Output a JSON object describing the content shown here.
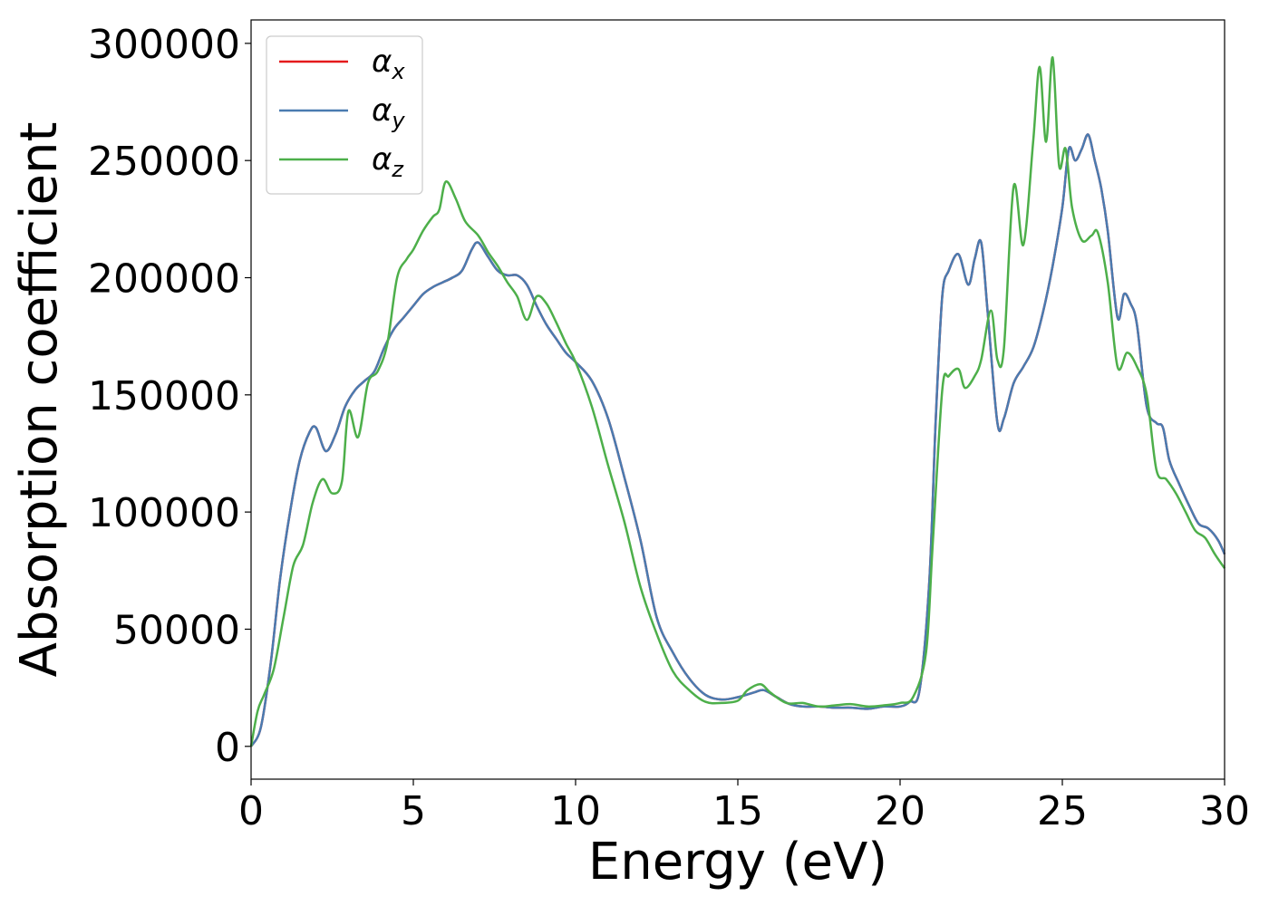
{
  "chart_data": {
    "type": "line",
    "title": "",
    "xlabel": "Energy (eV)",
    "ylabel": "Absorption coefficient",
    "xlim": [
      0,
      30
    ],
    "ylim": [
      -14000,
      310000
    ],
    "xticks": [
      0,
      5,
      10,
      15,
      20,
      25,
      30
    ],
    "xtick_labels": [
      "0",
      "5",
      "10",
      "15",
      "20",
      "25",
      "30"
    ],
    "yticks": [
      0,
      50000,
      100000,
      150000,
      200000,
      250000,
      300000
    ],
    "ytick_labels": [
      "0",
      "50000",
      "100000",
      "150000",
      "200000",
      "250000",
      "300000"
    ],
    "grid": false,
    "legend_position": "top-left",
    "series": [
      {
        "name": "αx",
        "symbol": "α",
        "subscript": "x",
        "color": "#e41a1c",
        "x": [
          0,
          0.3,
          0.6,
          0.9,
          1.2,
          1.5,
          1.8,
          2.0,
          2.3,
          2.6,
          2.9,
          3.2,
          3.5,
          3.8,
          4.1,
          4.4,
          4.7,
          5.0,
          5.3,
          5.6,
          5.9,
          6.2,
          6.5,
          6.8,
          7.0,
          7.3,
          7.6,
          7.9,
          8.2,
          8.5,
          8.8,
          9.1,
          9.4,
          9.7,
          10.0,
          10.5,
          11.0,
          11.5,
          12.0,
          12.5,
          13.0,
          13.5,
          14.0,
          14.5,
          15.0,
          15.5,
          15.8,
          16.2,
          16.6,
          17.0,
          17.5,
          18.0,
          18.5,
          19.0,
          19.5,
          20.0,
          20.3,
          20.6,
          20.9,
          21.1,
          21.3,
          21.5,
          21.8,
          22.1,
          22.3,
          22.5,
          22.7,
          23.0,
          23.2,
          23.5,
          23.8,
          24.1,
          24.4,
          24.7,
          25.0,
          25.2,
          25.4,
          25.6,
          25.8,
          26.0,
          26.2,
          26.4,
          26.7,
          26.9,
          27.1,
          27.3,
          27.6,
          27.9,
          28.1,
          28.3,
          28.6,
          28.9,
          29.2,
          29.5,
          29.8,
          30.0
        ],
        "values": [
          0,
          8000,
          35000,
          72000,
          100000,
          122000,
          134000,
          136000,
          126000,
          133000,
          145000,
          152000,
          156000,
          160000,
          170000,
          178000,
          183000,
          188000,
          193000,
          196000,
          198000,
          200000,
          203000,
          212000,
          215000,
          209000,
          203000,
          201000,
          201000,
          197000,
          188000,
          180000,
          174000,
          168000,
          164000,
          156000,
          140000,
          115000,
          88000,
          55000,
          40000,
          29000,
          22000,
          20000,
          21000,
          23000,
          24000,
          21000,
          18000,
          17000,
          17000,
          16500,
          16500,
          16000,
          17000,
          17000,
          19000,
          24000,
          70000,
          140000,
          192000,
          203000,
          210000,
          197000,
          208000,
          215000,
          185000,
          138000,
          140000,
          155000,
          162000,
          170000,
          185000,
          205000,
          230000,
          255000,
          250000,
          255000,
          261000,
          250000,
          238000,
          220000,
          183000,
          193000,
          189000,
          180000,
          145000,
          138000,
          136000,
          122000,
          112000,
          103000,
          95000,
          93000,
          88000,
          82000
        ]
      },
      {
        "name": "αy",
        "symbol": "α",
        "subscript": "y",
        "color": "#4a7bb0",
        "x": [
          0,
          0.3,
          0.6,
          0.9,
          1.2,
          1.5,
          1.8,
          2.0,
          2.3,
          2.6,
          2.9,
          3.2,
          3.5,
          3.8,
          4.1,
          4.4,
          4.7,
          5.0,
          5.3,
          5.6,
          5.9,
          6.2,
          6.5,
          6.8,
          7.0,
          7.3,
          7.6,
          7.9,
          8.2,
          8.5,
          8.8,
          9.1,
          9.4,
          9.7,
          10.0,
          10.5,
          11.0,
          11.5,
          12.0,
          12.5,
          13.0,
          13.5,
          14.0,
          14.5,
          15.0,
          15.5,
          15.8,
          16.2,
          16.6,
          17.0,
          17.5,
          18.0,
          18.5,
          19.0,
          19.5,
          20.0,
          20.3,
          20.6,
          20.9,
          21.1,
          21.3,
          21.5,
          21.8,
          22.1,
          22.3,
          22.5,
          22.7,
          23.0,
          23.2,
          23.5,
          23.8,
          24.1,
          24.4,
          24.7,
          25.0,
          25.2,
          25.4,
          25.6,
          25.8,
          26.0,
          26.2,
          26.4,
          26.7,
          26.9,
          27.1,
          27.3,
          27.6,
          27.9,
          28.1,
          28.3,
          28.6,
          28.9,
          29.2,
          29.5,
          29.8,
          30.0
        ],
        "values": [
          0,
          8000,
          35000,
          72000,
          100000,
          122000,
          134000,
          136000,
          126000,
          133000,
          145000,
          152000,
          156000,
          160000,
          170000,
          178000,
          183000,
          188000,
          193000,
          196000,
          198000,
          200000,
          203000,
          212000,
          215000,
          209000,
          203000,
          201000,
          201000,
          197000,
          188000,
          180000,
          174000,
          168000,
          164000,
          156000,
          140000,
          115000,
          88000,
          55000,
          40000,
          29000,
          22000,
          20000,
          21000,
          23000,
          24000,
          21000,
          18000,
          17000,
          17000,
          16500,
          16500,
          16000,
          17000,
          17000,
          19000,
          24000,
          70000,
          140000,
          192000,
          203000,
          210000,
          197000,
          208000,
          215000,
          185000,
          138000,
          140000,
          155000,
          162000,
          170000,
          185000,
          205000,
          230000,
          255000,
          250000,
          255000,
          261000,
          250000,
          238000,
          220000,
          183000,
          193000,
          189000,
          180000,
          145000,
          138000,
          136000,
          122000,
          112000,
          103000,
          95000,
          93000,
          88000,
          82000
        ]
      },
      {
        "name": "αz",
        "symbol": "α",
        "subscript": "z",
        "color": "#4daf4a",
        "x": [
          0,
          0.2,
          0.4,
          0.7,
          1.0,
          1.3,
          1.6,
          1.9,
          2.2,
          2.5,
          2.8,
          3.0,
          3.3,
          3.6,
          3.9,
          4.2,
          4.5,
          4.8,
          5.0,
          5.3,
          5.6,
          5.8,
          6.0,
          6.3,
          6.6,
          7.0,
          7.3,
          7.6,
          7.9,
          8.2,
          8.5,
          8.8,
          9.1,
          9.4,
          9.7,
          10.0,
          10.5,
          11.0,
          11.5,
          12.0,
          12.5,
          13.0,
          13.5,
          14.0,
          14.5,
          15.0,
          15.3,
          15.7,
          16.0,
          16.5,
          17.0,
          17.5,
          18.0,
          18.5,
          19.0,
          19.5,
          20.0,
          20.4,
          20.8,
          21.0,
          21.3,
          21.5,
          21.8,
          22.0,
          22.3,
          22.5,
          22.8,
          23.0,
          23.2,
          23.5,
          23.8,
          24.1,
          24.3,
          24.5,
          24.7,
          24.9,
          25.1,
          25.3,
          25.6,
          25.9,
          26.1,
          26.4,
          26.7,
          27.0,
          27.3,
          27.6,
          27.9,
          28.2,
          28.5,
          28.8,
          29.1,
          29.4,
          29.7,
          30.0
        ],
        "values": [
          0,
          15000,
          22000,
          33000,
          55000,
          77000,
          86000,
          104000,
          114000,
          108000,
          113000,
          143000,
          132000,
          155000,
          160000,
          172000,
          200000,
          208000,
          212000,
          220000,
          226000,
          229000,
          241000,
          234000,
          224000,
          218000,
          211000,
          205000,
          198000,
          192000,
          182000,
          192000,
          189000,
          181000,
          172000,
          164000,
          145000,
          120000,
          96000,
          68000,
          48000,
          32000,
          24000,
          19000,
          18500,
          19500,
          24000,
          26500,
          23000,
          18500,
          18500,
          17000,
          17500,
          18000,
          17000,
          17500,
          18500,
          21000,
          40000,
          85000,
          152000,
          158000,
          161000,
          153000,
          158000,
          165000,
          186000,
          165000,
          170000,
          239000,
          214000,
          258000,
          290000,
          258000,
          294000,
          248000,
          255000,
          230000,
          216000,
          218000,
          219000,
          198000,
          162000,
          168000,
          162000,
          150000,
          118000,
          114000,
          108000,
          100000,
          92000,
          89000,
          82000,
          76000
        ]
      }
    ]
  }
}
